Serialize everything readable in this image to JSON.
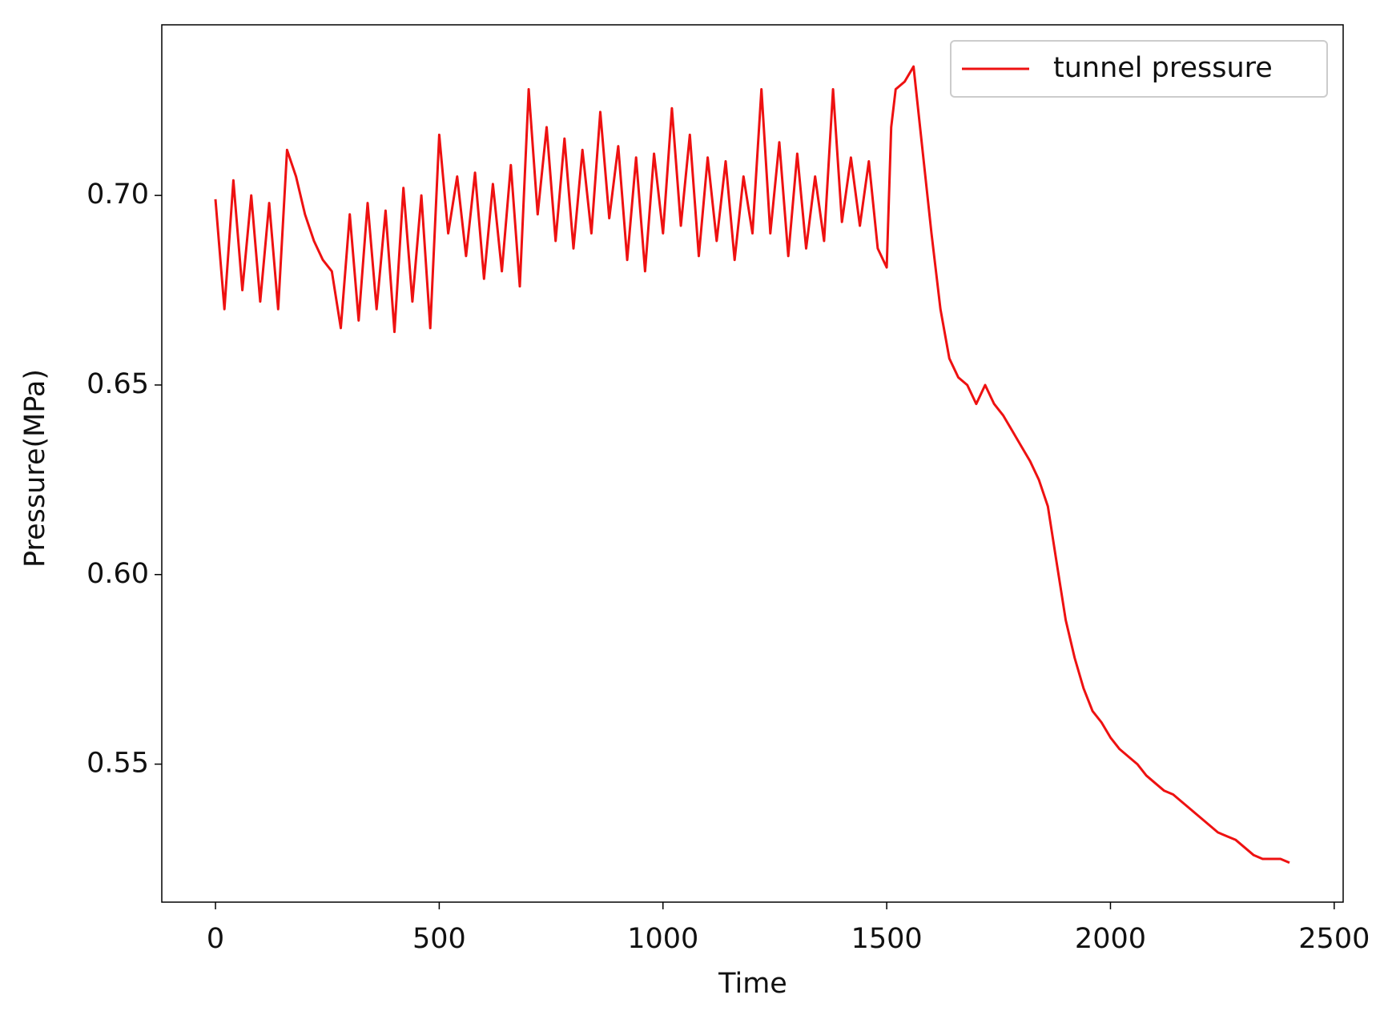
{
  "chart_data": {
    "type": "line",
    "x_label": "Time",
    "y_label": "Pressure(MPa)",
    "x": [
      0,
      20,
      40,
      60,
      80,
      100,
      120,
      140,
      160,
      180,
      200,
      220,
      240,
      260,
      280,
      300,
      320,
      340,
      360,
      380,
      400,
      420,
      440,
      460,
      480,
      500,
      520,
      540,
      560,
      580,
      600,
      620,
      640,
      660,
      680,
      700,
      720,
      740,
      760,
      780,
      800,
      820,
      840,
      860,
      880,
      900,
      920,
      940,
      960,
      980,
      1000,
      1020,
      1040,
      1060,
      1080,
      1100,
      1120,
      1140,
      1160,
      1180,
      1200,
      1220,
      1240,
      1260,
      1280,
      1300,
      1320,
      1340,
      1360,
      1380,
      1400,
      1420,
      1440,
      1460,
      1480,
      1500,
      1510,
      1520,
      1540,
      1560,
      1580,
      1600,
      1620,
      1640,
      1660,
      1680,
      1700,
      1720,
      1740,
      1760,
      1780,
      1800,
      1820,
      1840,
      1860,
      1880,
      1900,
      1920,
      1940,
      1960,
      1980,
      2000,
      2020,
      2040,
      2060,
      2080,
      2100,
      2120,
      2140,
      2160,
      2180,
      2200,
      2220,
      2240,
      2260,
      2280,
      2300,
      2320,
      2340,
      2360,
      2380,
      2400
    ],
    "series": [
      {
        "name": "tunnel pressure",
        "color": "#ee1111",
        "values": [
          0.699,
          0.67,
          0.704,
          0.675,
          0.7,
          0.672,
          0.698,
          0.67,
          0.712,
          0.705,
          0.695,
          0.688,
          0.683,
          0.68,
          0.665,
          0.695,
          0.667,
          0.698,
          0.67,
          0.696,
          0.664,
          0.702,
          0.672,
          0.7,
          0.665,
          0.716,
          0.69,
          0.705,
          0.684,
          0.706,
          0.678,
          0.703,
          0.68,
          0.708,
          0.676,
          0.728,
          0.695,
          0.718,
          0.688,
          0.715,
          0.686,
          0.712,
          0.69,
          0.722,
          0.694,
          0.713,
          0.683,
          0.71,
          0.68,
          0.711,
          0.69,
          0.723,
          0.692,
          0.716,
          0.684,
          0.71,
          0.688,
          0.709,
          0.683,
          0.705,
          0.69,
          0.728,
          0.69,
          0.714,
          0.684,
          0.711,
          0.686,
          0.705,
          0.688,
          0.728,
          0.693,
          0.71,
          0.692,
          0.709,
          0.686,
          0.681,
          0.718,
          0.728,
          0.73,
          0.734,
          0.712,
          0.69,
          0.67,
          0.657,
          0.652,
          0.65,
          0.645,
          0.65,
          0.645,
          0.642,
          0.638,
          0.634,
          0.63,
          0.625,
          0.618,
          0.603,
          0.588,
          0.578,
          0.57,
          0.564,
          0.561,
          0.557,
          0.554,
          0.552,
          0.55,
          0.547,
          0.545,
          0.543,
          0.542,
          0.54,
          0.538,
          0.536,
          0.534,
          0.532,
          0.531,
          0.53,
          0.528,
          0.526,
          0.525,
          0.525,
          0.525,
          0.524
        ]
      }
    ],
    "xlim": [
      -120,
      2520
    ],
    "xticks": [
      0,
      500,
      1000,
      1500,
      2000,
      2500
    ],
    "ylim": [
      0.5136,
      0.745
    ],
    "yticks": [
      0.55,
      {
        "value": 0.6,
        "label": "0.60"
      },
      0.65,
      {
        "value": 0.7,
        "label": "0.70"
      }
    ],
    "legend": "upper right",
    "grid": false
  }
}
